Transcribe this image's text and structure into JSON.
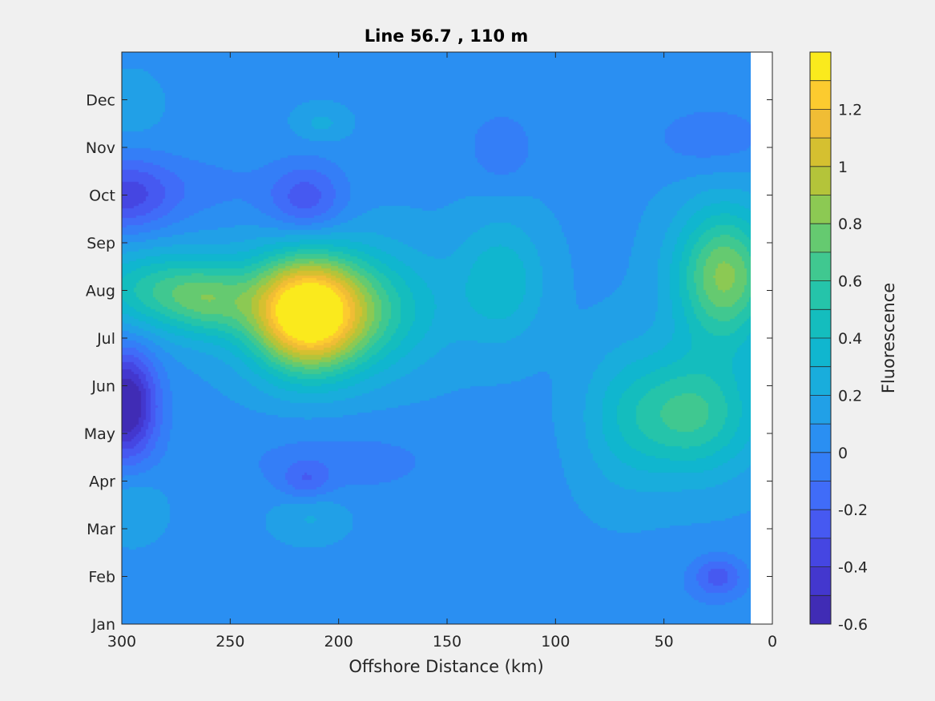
{
  "chart_data": {
    "type": "heatmap",
    "title": "Line 56.7 , 110 m",
    "xlabel": "Offshore Distance (km)",
    "colorbar_label": "Fluorescence",
    "x_range": [
      300,
      0
    ],
    "x_reversed": true,
    "x_ticks": [
      "300",
      "250",
      "200",
      "150",
      "100",
      "50",
      "0"
    ],
    "x_tick_values": [
      300,
      250,
      200,
      150,
      100,
      50,
      0
    ],
    "y_ticks": [
      "Jan",
      "Feb",
      "Mar",
      "Apr",
      "May",
      "Jun",
      "Jul",
      "Aug",
      "Sep",
      "Oct",
      "Nov",
      "Dec"
    ],
    "colorbar_ticks": [
      "1.2",
      "1",
      "0.8",
      "0.6",
      "0.4",
      "0.2",
      "0",
      "-0.2",
      "-0.4",
      "-0.6"
    ],
    "colorbar_tick_values": [
      1.2,
      1.0,
      0.8,
      0.6,
      0.4,
      0.2,
      0,
      -0.2,
      -0.4,
      -0.6
    ],
    "color_range": [
      -0.6,
      1.4
    ],
    "color_levels": 20,
    "colormap": "parula",
    "data_coverage_km": [
      10,
      300
    ],
    "base_value": 0.08,
    "features": [
      {
        "x": 215,
        "month": 6.5,
        "value": 1.25,
        "sx": 18,
        "sy": 0.85
      },
      {
        "x": 188,
        "month": 6.6,
        "value": 0.45,
        "sx": 25,
        "sy": 0.9
      },
      {
        "x": 235,
        "month": 6.8,
        "value": 0.15,
        "sx": 20,
        "sy": 0.7
      },
      {
        "x": 285,
        "month": 7.0,
        "value": 0.45,
        "sx": 20,
        "sy": 0.6
      },
      {
        "x": 260,
        "month": 6.8,
        "value": 0.4,
        "sx": 14,
        "sy": 0.55
      },
      {
        "x": 125,
        "month": 7.2,
        "value": 0.3,
        "sx": 14,
        "sy": 0.9
      },
      {
        "x": 22,
        "month": 7.3,
        "value": 0.75,
        "sx": 16,
        "sy": 1.0
      },
      {
        "x": 38,
        "month": 4.4,
        "value": 0.55,
        "sx": 22,
        "sy": 0.9
      },
      {
        "x": 70,
        "month": 4.3,
        "value": 0.15,
        "sx": 14,
        "sy": 1.2
      },
      {
        "x": 298,
        "month": 4.6,
        "value": -0.75,
        "sx": 10,
        "sy": 0.8
      },
      {
        "x": 298,
        "month": 9.0,
        "value": -0.42,
        "sx": 16,
        "sy": 0.55
      },
      {
        "x": 215,
        "month": 8.9,
        "value": -0.35,
        "sx": 13,
        "sy": 0.55
      },
      {
        "x": 260,
        "month": 9.2,
        "value": -0.1,
        "sx": 20,
        "sy": 0.5
      },
      {
        "x": 125,
        "month": 10.0,
        "value": -0.18,
        "sx": 10,
        "sy": 0.5
      },
      {
        "x": 28,
        "month": 10.2,
        "value": -0.15,
        "sx": 20,
        "sy": 0.5
      },
      {
        "x": 200,
        "month": 3.4,
        "value": -0.12,
        "sx": 40,
        "sy": 0.6
      },
      {
        "x": 215,
        "month": 3.0,
        "value": -0.22,
        "sx": 8,
        "sy": 0.3
      },
      {
        "x": 120,
        "month": 0.6,
        "value": -0.08,
        "sx": 80,
        "sy": 0.6
      },
      {
        "x": 25,
        "month": 1.0,
        "value": -0.3,
        "sx": 8,
        "sy": 0.3
      },
      {
        "x": 213,
        "month": 2.3,
        "value": 0.15,
        "sx": 12,
        "sy": 0.4
      },
      {
        "x": 295,
        "month": 2.5,
        "value": 0.12,
        "sx": 10,
        "sy": 0.5
      },
      {
        "x": 295,
        "month": 10.9,
        "value": 0.12,
        "sx": 8,
        "sy": 0.4
      },
      {
        "x": 208,
        "month": 10.5,
        "value": 0.15,
        "sx": 8,
        "sy": 0.25
      }
    ]
  }
}
